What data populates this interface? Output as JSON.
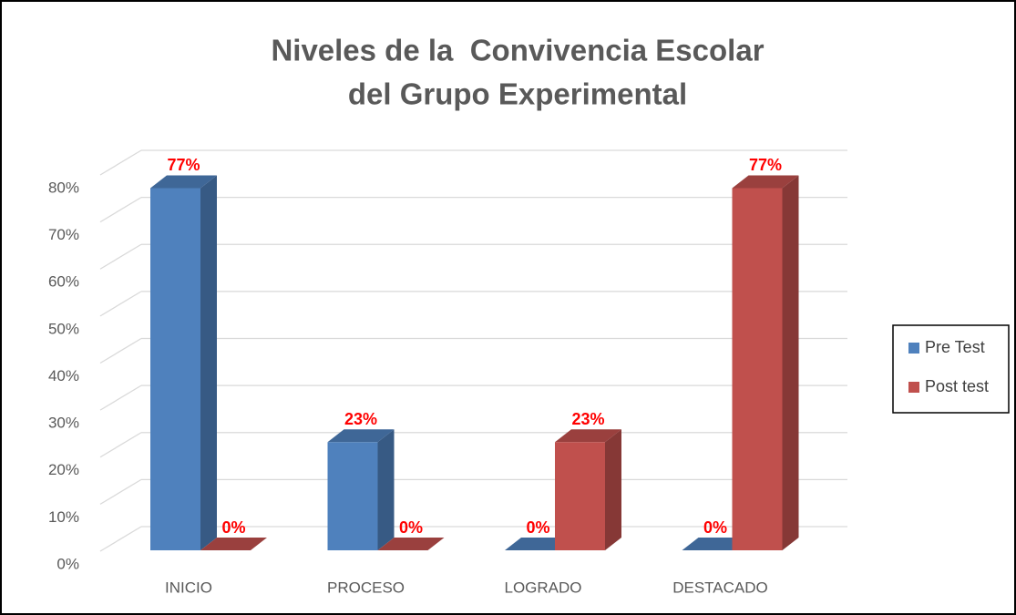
{
  "chart_data": {
    "type": "bar3d",
    "title": [
      "Niveles de la  Convivencia Escolar",
      "del Grupo Experimental"
    ],
    "categories": [
      "INICIO",
      "PROCESO",
      "LOGRADO",
      "DESTACADO"
    ],
    "series": [
      {
        "name": "Pre Test",
        "color": "#4f81bd",
        "values": [
          77,
          23,
          0,
          0
        ],
        "value_labels": [
          "77%",
          "23%",
          "0%",
          "0%"
        ]
      },
      {
        "name": "Post test",
        "color": "#c0504d",
        "values": [
          0,
          0,
          23,
          77
        ],
        "value_labels": [
          "0%",
          "0%",
          "23%",
          "77%"
        ]
      }
    ],
    "ylim": [
      0,
      80
    ],
    "yticks": [
      {
        "value": 0,
        "label": "0%"
      },
      {
        "value": 10,
        "label": "10%"
      },
      {
        "value": 20,
        "label": "20%"
      },
      {
        "value": 30,
        "label": "30%"
      },
      {
        "value": 40,
        "label": "40%"
      },
      {
        "value": 50,
        "label": "50%"
      },
      {
        "value": 60,
        "label": "60%"
      },
      {
        "value": 70,
        "label": "70%"
      },
      {
        "value": 80,
        "label": "80%"
      }
    ],
    "grid": true,
    "legend": "right"
  }
}
